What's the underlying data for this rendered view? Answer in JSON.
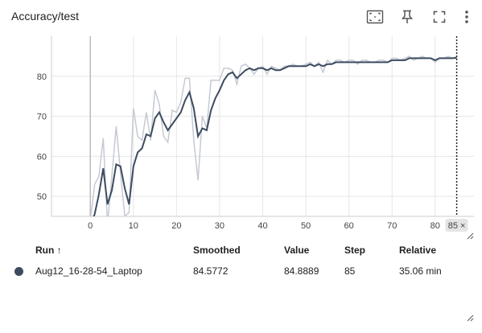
{
  "card": {
    "title": "Accuracy/test"
  },
  "toolbar": {
    "icons": [
      "fit-domain-icon",
      "pin-icon",
      "fullscreen-icon",
      "more-vert-icon"
    ]
  },
  "chart_data": {
    "type": "line",
    "title": "Accuracy/test",
    "xlim": [
      -9,
      89
    ],
    "ylim": [
      45,
      90
    ],
    "x_ticks": [
      0,
      10,
      20,
      30,
      40,
      50,
      60,
      70,
      80
    ],
    "y_ticks": [
      50,
      60,
      70,
      80
    ],
    "cursor": {
      "x": 85,
      "label": "85 ×"
    },
    "series": [
      {
        "role": "raw",
        "color": "#c5cad3",
        "x": [
          0,
          1,
          2,
          3,
          4,
          5,
          6,
          7,
          8,
          9,
          10,
          11,
          12,
          13,
          14,
          15,
          16,
          17,
          18,
          19,
          20,
          21,
          22,
          23,
          24,
          25,
          26,
          27,
          28,
          29,
          30,
          31,
          32,
          33,
          34,
          35,
          36,
          37,
          38,
          39,
          40,
          41,
          42,
          43,
          44,
          45,
          46,
          47,
          48,
          49,
          50,
          51,
          52,
          53,
          54,
          55,
          56,
          57,
          58,
          59,
          60,
          61,
          62,
          63,
          64,
          65,
          66,
          67,
          68,
          69,
          70,
          71,
          72,
          73,
          74,
          75,
          76,
          77,
          78,
          79,
          80,
          81,
          82,
          83,
          84,
          85
        ],
        "y": [
          44,
          53,
          55,
          64.5,
          43,
          55,
          67.5,
          56,
          45,
          46,
          72,
          65,
          64,
          71,
          64,
          76.5,
          73,
          65,
          63.5,
          71.5,
          71,
          73.5,
          79.5,
          79.5,
          64,
          54,
          70,
          67,
          79,
          79,
          79,
          82,
          82,
          81.5,
          78,
          82.5,
          83,
          82,
          80.5,
          82,
          82.5,
          80.5,
          82.5,
          82,
          81.5,
          82.5,
          82.5,
          83,
          82.5,
          82.5,
          83,
          83.5,
          82.5,
          83.5,
          81,
          84,
          83,
          84,
          84,
          83.5,
          84,
          84,
          83,
          84,
          84,
          83.5,
          83.5,
          84,
          84,
          83.5,
          84.5,
          84.5,
          84,
          84.5,
          85,
          84,
          84.5,
          85,
          84.5,
          84.5,
          83.5,
          84.5,
          84.5,
          85,
          84.5,
          84.9
        ]
      },
      {
        "role": "smoothed",
        "color": "#3d4b60",
        "x": [
          0,
          1,
          2,
          3,
          4,
          5,
          6,
          7,
          8,
          9,
          10,
          11,
          12,
          13,
          14,
          15,
          16,
          17,
          18,
          19,
          20,
          21,
          22,
          23,
          24,
          25,
          26,
          27,
          28,
          29,
          30,
          31,
          32,
          33,
          34,
          35,
          36,
          37,
          38,
          39,
          40,
          41,
          42,
          43,
          44,
          45,
          46,
          47,
          48,
          49,
          50,
          51,
          52,
          53,
          54,
          55,
          56,
          57,
          58,
          59,
          60,
          61,
          62,
          63,
          64,
          65,
          66,
          67,
          68,
          69,
          70,
          71,
          72,
          73,
          74,
          75,
          76,
          77,
          78,
          79,
          80,
          81,
          82,
          83,
          84,
          85
        ],
        "y": [
          43,
          45.5,
          50.5,
          57,
          48,
          51.5,
          58,
          57.5,
          52,
          48,
          57.5,
          61,
          62,
          65.5,
          65,
          69.5,
          71,
          68.5,
          66.5,
          68,
          69.5,
          71,
          74,
          76,
          72,
          65,
          67,
          66.5,
          71.5,
          74.5,
          76.5,
          79,
          80.5,
          81,
          79.5,
          80.5,
          81.5,
          82,
          81.5,
          82,
          82,
          81.5,
          82,
          81.5,
          81.5,
          82,
          82.5,
          82.5,
          82.5,
          82.5,
          82.5,
          83,
          82.5,
          83,
          82.5,
          83,
          83,
          83.5,
          83.5,
          83.5,
          83.5,
          83.5,
          83.5,
          83.5,
          83.5,
          83.5,
          83.5,
          83.5,
          83.5,
          83.5,
          84,
          84,
          84,
          84,
          84.5,
          84.5,
          84.5,
          84.5,
          84.5,
          84.5,
          84,
          84.5,
          84.5,
          84.5,
          84.5,
          84.6
        ]
      }
    ]
  },
  "runs_table": {
    "headers": {
      "run": "Run ↑",
      "smoothed": "Smoothed",
      "value": "Value",
      "step": "Step",
      "relative": "Relative"
    },
    "rows": [
      {
        "color": "#3d4b60",
        "run": "Aug12_16-28-54_Laptop",
        "smoothed": "84.5772",
        "value": "84.8889",
        "step": "85",
        "relative": "35.06 min"
      }
    ]
  }
}
